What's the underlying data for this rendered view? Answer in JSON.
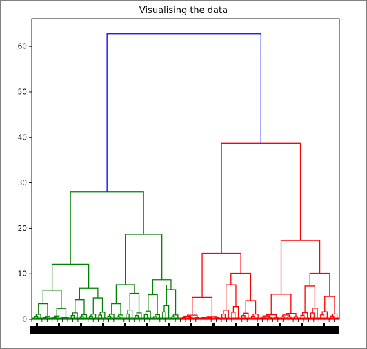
{
  "chart_data": {
    "type": "dendrogram",
    "title": "Visualising the data",
    "xlabel": "",
    "ylabel": "",
    "ylim": [
      0,
      66
    ],
    "yticks": [
      0,
      10,
      20,
      30,
      40,
      50,
      60
    ],
    "grid": false,
    "colors": {
      "root": "#0000ff",
      "cluster_1": "#008000",
      "cluster_2": "#ff0000",
      "axes": "#000000",
      "tick_labels": "#000000"
    },
    "leaf_count": 200,
    "x_tick_labels_note": "dense overlapping leaf labels form a solid black band",
    "root_merge_height": 62.8,
    "clusters": [
      {
        "name": "green",
        "color": "#008000",
        "merge_height": 28.0,
        "subclusters": [
          {
            "merge_height": 12.1,
            "subclusters": [
              {
                "merge_height": 6.4,
                "children": [
                  2.3,
                  1.1,
                  1.3,
                  0.6
                ]
              },
              {
                "merge_height": 6.8,
                "children": [
                  3.2,
                  2.0,
                  2.4,
                  3.6
                ]
              }
            ]
          },
          {
            "merge_height": 18.7,
            "subclusters": [
              {
                "merge_height": 7.6,
                "children": [
                  2.3,
                  1.9,
                  5.0,
                  3.2
                ]
              },
              {
                "merge_height": 8.7,
                "children": [
                  4.3,
                  2.0,
                  7.6,
                  1.9
                ]
              }
            ]
          }
        ]
      },
      {
        "name": "red",
        "color": "#ff0000",
        "merge_height": 38.7,
        "subclusters": [
          {
            "merge_height": 14.5,
            "subclusters": [
              {
                "merge_height": 4.8,
                "children": [
                  1.6,
                  0.9
                ]
              },
              {
                "merge_height": 10.1,
                "children": [
                  4.9,
                  7.1,
                  3.0,
                  2.4
                ]
              }
            ]
          },
          {
            "merge_height": 17.3,
            "subclusters": [
              {
                "merge_height": 5.5,
                "children": [
                  1.8,
                  2.5
                ]
              },
              {
                "merge_height": 10.1,
                "children": [
                  3.3,
                  6.2,
                  3.9,
                  2.5
                ]
              }
            ]
          }
        ]
      }
    ]
  }
}
